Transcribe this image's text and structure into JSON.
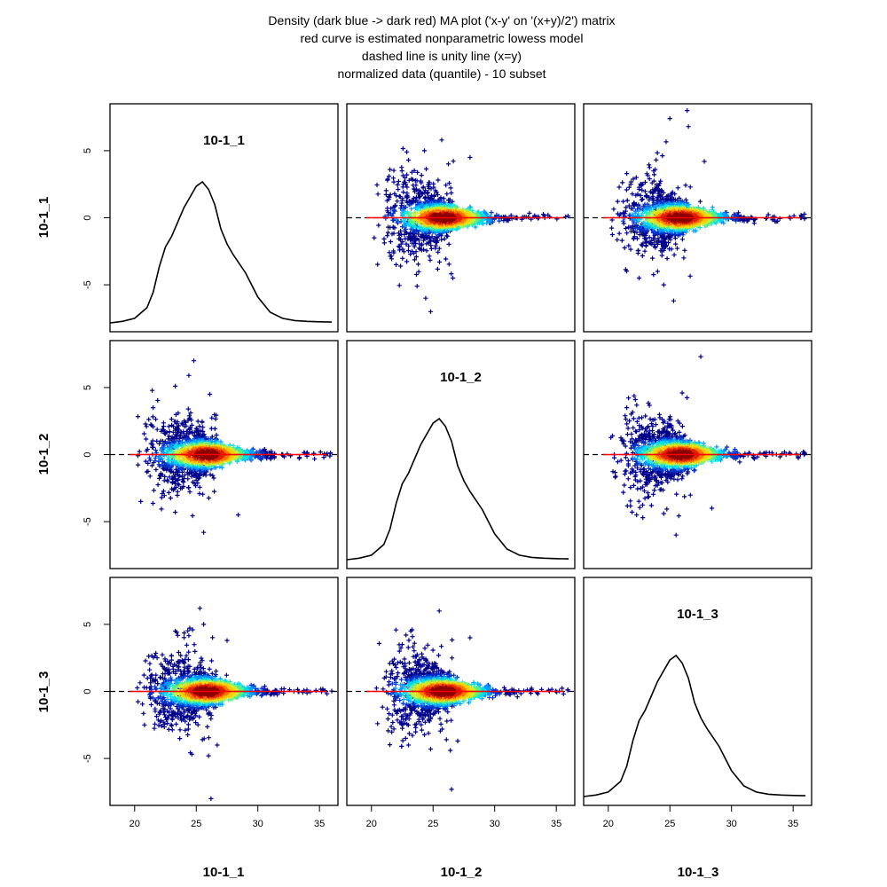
{
  "title_lines": [
    "Density (dark blue -> dark red) MA plot ('x-y' on '(x+y)/2') matrix",
    "red curve is estimated nonparametric lowess model",
    "dashed line is unity line (x=y)",
    "normalized data (quantile) - 10 subset"
  ],
  "samples": [
    "10-1_1",
    "10-1_2",
    "10-1_3"
  ],
  "x_ticks": [
    20,
    25,
    30,
    35
  ],
  "y_ticks": [
    -5,
    0,
    5
  ],
  "colors": {
    "density_low": "#00008B",
    "density_high": "#8B0000",
    "lowess": "#FF0000",
    "unity": "#000000",
    "density_curve": "#000000"
  },
  "chart_data": {
    "type": "scatter",
    "kind": "MA plot matrix with density diagonal",
    "xlim": [
      18,
      36.5
    ],
    "ylim": [
      -8.5,
      8.5
    ],
    "x_ticks": [
      20,
      25,
      30,
      35
    ],
    "y_ticks": [
      -5,
      0,
      5
    ],
    "density_curve": {
      "x": [
        18,
        19,
        20,
        21,
        21.5,
        22,
        22.5,
        23,
        24,
        25,
        25.5,
        26,
        26.5,
        27,
        27.5,
        28,
        29,
        30,
        31,
        32,
        33,
        34,
        35,
        36
      ],
      "y": [
        0.0,
        0.01,
        0.03,
        0.1,
        0.2,
        0.37,
        0.5,
        0.57,
        0.76,
        0.9,
        0.93,
        0.88,
        0.78,
        0.62,
        0.52,
        0.45,
        0.33,
        0.17,
        0.07,
        0.03,
        0.015,
        0.01,
        0.007,
        0.005
      ]
    },
    "panels": [
      {
        "row": 1,
        "col": 1,
        "type": "density",
        "label": "10-1_1"
      },
      {
        "row": 1,
        "col": 2,
        "type": "ma",
        "outliers": [
          [
            21.5,
            3.6
          ],
          [
            23,
            4.3
          ],
          [
            24.3,
            5
          ],
          [
            25.7,
            5.8
          ],
          [
            28,
            4.5
          ],
          [
            22,
            -3.5
          ],
          [
            23.7,
            -5.1
          ],
          [
            24.4,
            -6
          ],
          [
            24.8,
            -7
          ],
          [
            26.6,
            -4.5
          ]
        ]
      },
      {
        "row": 1,
        "col": 3,
        "type": "ma",
        "outliers": [
          [
            26.4,
            8
          ],
          [
            25,
            7.4
          ],
          [
            26.5,
            6.8
          ],
          [
            27.8,
            4.2
          ],
          [
            21.5,
            3.3
          ],
          [
            23.8,
            3.6
          ],
          [
            22.5,
            -4.5
          ],
          [
            24.5,
            -5
          ],
          [
            25.3,
            -6.2
          ],
          [
            24,
            -4
          ]
        ]
      },
      {
        "row": 2,
        "col": 1,
        "type": "ma",
        "outliers": [
          [
            24.8,
            7
          ],
          [
            24.4,
            5.9
          ],
          [
            23.3,
            5.1
          ],
          [
            26.1,
            4.5
          ],
          [
            21.5,
            3.5
          ],
          [
            28.4,
            -4.5
          ],
          [
            25.6,
            -5.8
          ],
          [
            23.3,
            -4.3
          ],
          [
            20.5,
            -3.5
          ],
          [
            22.2,
            -3.2
          ]
        ]
      },
      {
        "row": 2,
        "col": 2,
        "type": "density",
        "label": "10-1_2"
      },
      {
        "row": 2,
        "col": 3,
        "type": "ma",
        "outliers": [
          [
            27.5,
            7.3
          ],
          [
            26,
            4.6
          ],
          [
            22.2,
            4.1
          ],
          [
            28.4,
            -4
          ],
          [
            25.5,
            -6
          ],
          [
            22.3,
            -4.5
          ],
          [
            22.8,
            -4.7
          ],
          [
            24.5,
            -4.4
          ],
          [
            21.5,
            3.5
          ],
          [
            23.5,
            -3.8
          ]
        ]
      },
      {
        "row": 3,
        "col": 1,
        "type": "ma",
        "outliers": [
          [
            25.3,
            6.2
          ],
          [
            25.6,
            5
          ],
          [
            24.7,
            4.6
          ],
          [
            23.3,
            4.5
          ],
          [
            27.5,
            3.8
          ],
          [
            26.2,
            -8
          ],
          [
            26,
            -4.8
          ],
          [
            26.7,
            -4
          ],
          [
            25.5,
            -3.6
          ],
          [
            20.8,
            -2.5
          ]
        ]
      },
      {
        "row": 3,
        "col": 2,
        "type": "ma",
        "outliers": [
          [
            25.5,
            6
          ],
          [
            28,
            4
          ],
          [
            23.3,
            4.6
          ],
          [
            22.8,
            4.2
          ],
          [
            26.5,
            -7.3
          ],
          [
            26.4,
            -4.4
          ],
          [
            24.8,
            -4.3
          ],
          [
            23,
            -4
          ],
          [
            20.5,
            -2.4
          ],
          [
            27,
            -3.7
          ]
        ]
      },
      {
        "row": 3,
        "col": 3,
        "type": "density",
        "label": "10-1_3"
      }
    ]
  }
}
